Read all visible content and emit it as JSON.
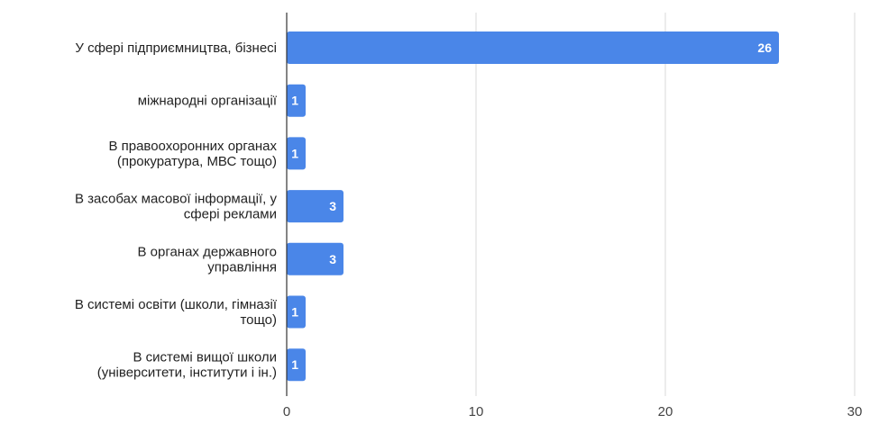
{
  "chart_data": {
    "type": "bar",
    "orientation": "horizontal",
    "categories": [
      [
        "У сфері підприємництва, бізнесі"
      ],
      [
        "міжнародні організації"
      ],
      [
        "В правоохоронних органах",
        "(прокуратура, МВС тощо)"
      ],
      [
        "В засобах масової інформації, у",
        "сфері реклами"
      ],
      [
        "В органах державного",
        "управління"
      ],
      [
        "В системі освіти (школи, гімназії",
        "тощо)"
      ],
      [
        "В системі вищої школи",
        "(університети, інститути і ін.)"
      ]
    ],
    "values": [
      26,
      1,
      1,
      3,
      3,
      1,
      1
    ],
    "data_labels": [
      "26",
      "1",
      "1",
      "3",
      "3",
      "1",
      "1"
    ],
    "xlim": [
      0,
      30
    ],
    "x_ticks": [
      0,
      10,
      20,
      30
    ],
    "x_tick_labels": [
      "0",
      "10",
      "20",
      "30"
    ],
    "title": "",
    "xlabel": "",
    "ylabel": "",
    "grid": "vertical",
    "legend": "none",
    "bar_color": "#4a86e8",
    "grid_color": "#d9d9d9",
    "axis_color": "#333333"
  }
}
